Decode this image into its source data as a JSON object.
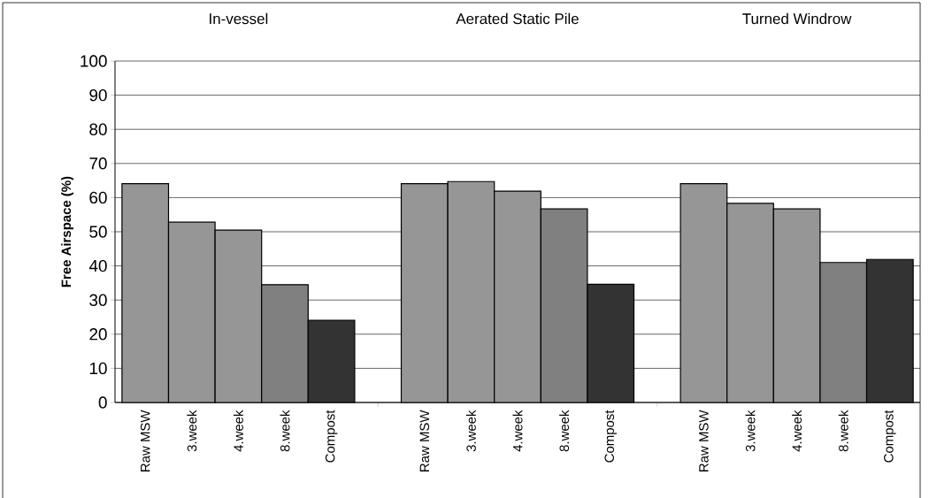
{
  "chart_data": {
    "type": "bar",
    "ylabel": "Free Airspace (%)",
    "categories": [
      "Raw MSW",
      "3.week",
      "4.week",
      "8.week",
      "Compost",
      null,
      "Raw MSW",
      "3.week",
      "4.week",
      "8.week",
      "Compost",
      null,
      "Raw MSW",
      "3.week",
      "4.week",
      "8.week",
      "Compost"
    ],
    "values": [
      64.1,
      52.8,
      50.5,
      34.5,
      24.1,
      null,
      64.1,
      64.7,
      61.9,
      56.7,
      34.6,
      null,
      64.1,
      58.3,
      56.7,
      41.0,
      41.9
    ],
    "colors": [
      "#969696",
      "#969696",
      "#969696",
      "#808080",
      "#333333",
      null,
      "#969696",
      "#969696",
      "#969696",
      "#808080",
      "#333333",
      null,
      "#969696",
      "#969696",
      "#969696",
      "#808080",
      "#333333"
    ],
    "annotations": [
      "In-vessel",
      "Aerated Static Pile",
      "Turned Windrow"
    ],
    "ylim": [
      0,
      100
    ],
    "yticks": [
      0,
      10,
      20,
      30,
      40,
      50,
      60,
      70,
      80,
      90,
      100
    ],
    "grid": "y"
  }
}
